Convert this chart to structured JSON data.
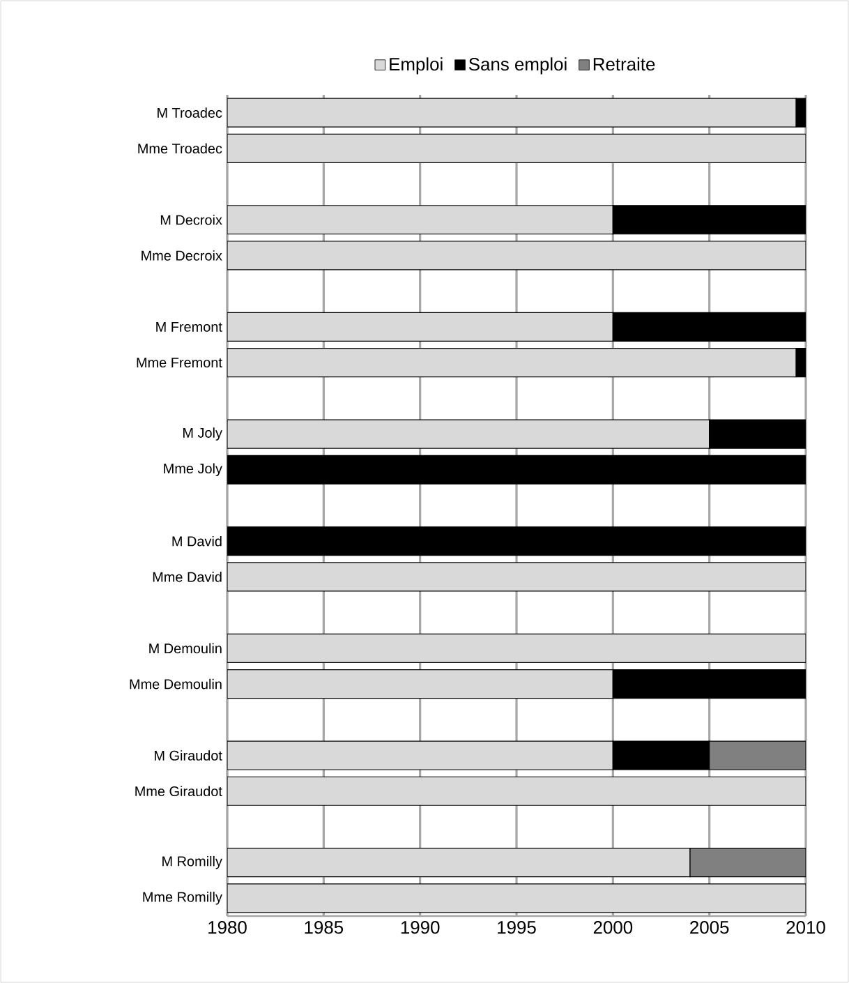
{
  "chart_data": {
    "type": "bar",
    "orientation": "horizontal",
    "categories": [
      "M Troadec",
      "Mme Troadec",
      null,
      "M Decroix",
      "Mme Decroix",
      null,
      "M Fremont",
      "Mme Fremont",
      null,
      "M Joly",
      "Mme Joly",
      null,
      "M David",
      "Mme David",
      null,
      "M Demoulin",
      "Mme Demoulin",
      null,
      "M Giraudot",
      "Mme Giraudot",
      null,
      "M Romilly",
      "Mme Romilly"
    ],
    "series": [
      {
        "name": "Emploi",
        "color": "#d9d9d9",
        "base": [
          1980,
          1980,
          null,
          1980,
          1980,
          null,
          1980,
          1980,
          null,
          1980,
          null,
          null,
          null,
          1980,
          null,
          1980,
          1980,
          null,
          1980,
          1980,
          null,
          1980,
          1980
        ],
        "values": [
          29.5,
          30,
          null,
          20,
          30,
          null,
          20,
          29.5,
          null,
          25,
          null,
          null,
          null,
          30,
          null,
          30,
          20,
          null,
          20,
          30,
          null,
          24,
          30
        ]
      },
      {
        "name": "Sans emploi",
        "color": "#000000",
        "base": [
          2009.5,
          null,
          null,
          2000,
          null,
          null,
          2000,
          2009.5,
          null,
          2005,
          1980,
          null,
          1980,
          null,
          null,
          null,
          2000,
          null,
          2000,
          null,
          null,
          null,
          null
        ],
        "values": [
          0.5,
          null,
          null,
          10,
          null,
          null,
          10,
          0.5,
          null,
          5,
          30,
          null,
          30,
          null,
          null,
          null,
          10,
          null,
          5,
          null,
          null,
          null,
          null
        ]
      },
      {
        "name": "Retraite",
        "color": "#808080",
        "base": [
          null,
          null,
          null,
          null,
          null,
          null,
          null,
          null,
          null,
          null,
          null,
          null,
          null,
          null,
          null,
          null,
          null,
          null,
          2005,
          null,
          null,
          2004,
          null
        ],
        "values": [
          null,
          null,
          null,
          null,
          null,
          null,
          null,
          null,
          null,
          null,
          null,
          null,
          null,
          null,
          null,
          null,
          null,
          null,
          5,
          null,
          null,
          6,
          null
        ]
      }
    ],
    "xlim": [
      1980,
      2010
    ],
    "xticks": [
      1980,
      1985,
      1990,
      1995,
      2000,
      2005,
      2010
    ],
    "grid": "x",
    "legend": "top"
  }
}
